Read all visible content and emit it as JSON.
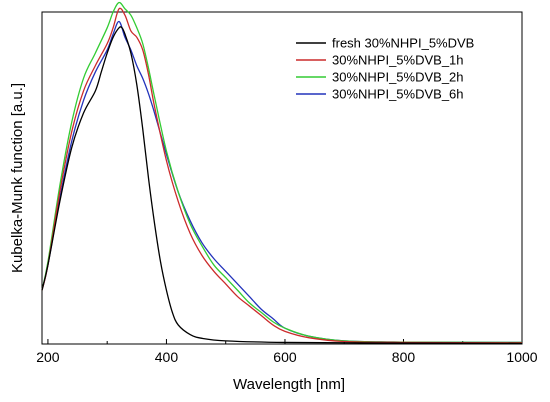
{
  "chart_data": {
    "type": "line",
    "xlabel": "Wavelength [nm]",
    "ylabel": "Kubelka-Munk function [a.u.]",
    "xlim": [
      190,
      1000
    ],
    "ylim": [
      0,
      1.05
    ],
    "x_ticks": [
      200,
      400,
      600,
      800,
      1000
    ],
    "y_ticks_shown": false,
    "grid": false,
    "legend_position": "top-right",
    "series": [
      {
        "name": "fresh 30%NHPI_5%DVB",
        "color": "#000000",
        "x": [
          190,
          200,
          220,
          240,
          260,
          280,
          290,
          300,
          310,
          320,
          325,
          330,
          340,
          350,
          360,
          370,
          380,
          390,
          400,
          410,
          420,
          440,
          460,
          500,
          600,
          800,
          1000
        ],
        "y": [
          0.17,
          0.25,
          0.45,
          0.62,
          0.73,
          0.8,
          0.86,
          0.92,
          0.97,
          1.0,
          1.0,
          0.98,
          0.92,
          0.82,
          0.68,
          0.52,
          0.38,
          0.26,
          0.17,
          0.1,
          0.06,
          0.03,
          0.018,
          0.01,
          0.005,
          0.003,
          0.002
        ]
      },
      {
        "name": "30%NHPI_5%DVB_1h",
        "color": "#cc2b2b",
        "x": [
          190,
          200,
          220,
          240,
          260,
          280,
          300,
          310,
          320,
          330,
          340,
          350,
          360,
          370,
          380,
          400,
          420,
          440,
          460,
          480,
          500,
          520,
          540,
          560,
          580,
          600,
          640,
          700,
          800,
          1000
        ],
        "y": [
          0.17,
          0.25,
          0.48,
          0.67,
          0.8,
          0.88,
          0.95,
          1.0,
          1.06,
          1.04,
          0.99,
          0.97,
          0.93,
          0.85,
          0.75,
          0.58,
          0.45,
          0.35,
          0.28,
          0.23,
          0.19,
          0.15,
          0.12,
          0.09,
          0.06,
          0.04,
          0.02,
          0.008,
          0.005,
          0.004
        ]
      },
      {
        "name": "30%NHPI_5%DVB_2h",
        "color": "#33cc33",
        "x": [
          190,
          200,
          220,
          240,
          260,
          280,
          300,
          310,
          320,
          330,
          340,
          350,
          360,
          370,
          380,
          400,
          420,
          440,
          460,
          480,
          500,
          520,
          540,
          560,
          580,
          600,
          640,
          700,
          800,
          1000
        ],
        "y": [
          0.17,
          0.26,
          0.5,
          0.7,
          0.84,
          0.92,
          1.0,
          1.05,
          1.08,
          1.06,
          1.04,
          1.0,
          0.95,
          0.87,
          0.78,
          0.61,
          0.48,
          0.38,
          0.31,
          0.25,
          0.21,
          0.17,
          0.13,
          0.1,
          0.07,
          0.05,
          0.025,
          0.01,
          0.006,
          0.005
        ]
      },
      {
        "name": "30%NHPI_5%DVB_6h",
        "color": "#2233bb",
        "x": [
          190,
          200,
          220,
          240,
          260,
          280,
          300,
          310,
          320,
          330,
          340,
          350,
          360,
          370,
          380,
          400,
          420,
          440,
          460,
          480,
          500,
          520,
          540,
          560,
          580,
          600,
          640,
          700,
          800,
          1000
        ],
        "y": [
          0.17,
          0.25,
          0.46,
          0.64,
          0.77,
          0.86,
          0.93,
          0.98,
          1.02,
          0.97,
          0.93,
          0.88,
          0.84,
          0.79,
          0.73,
          0.6,
          0.48,
          0.39,
          0.32,
          0.27,
          0.23,
          0.19,
          0.15,
          0.11,
          0.08,
          0.05,
          0.025,
          0.01,
          0.006,
          0.005
        ]
      }
    ]
  }
}
